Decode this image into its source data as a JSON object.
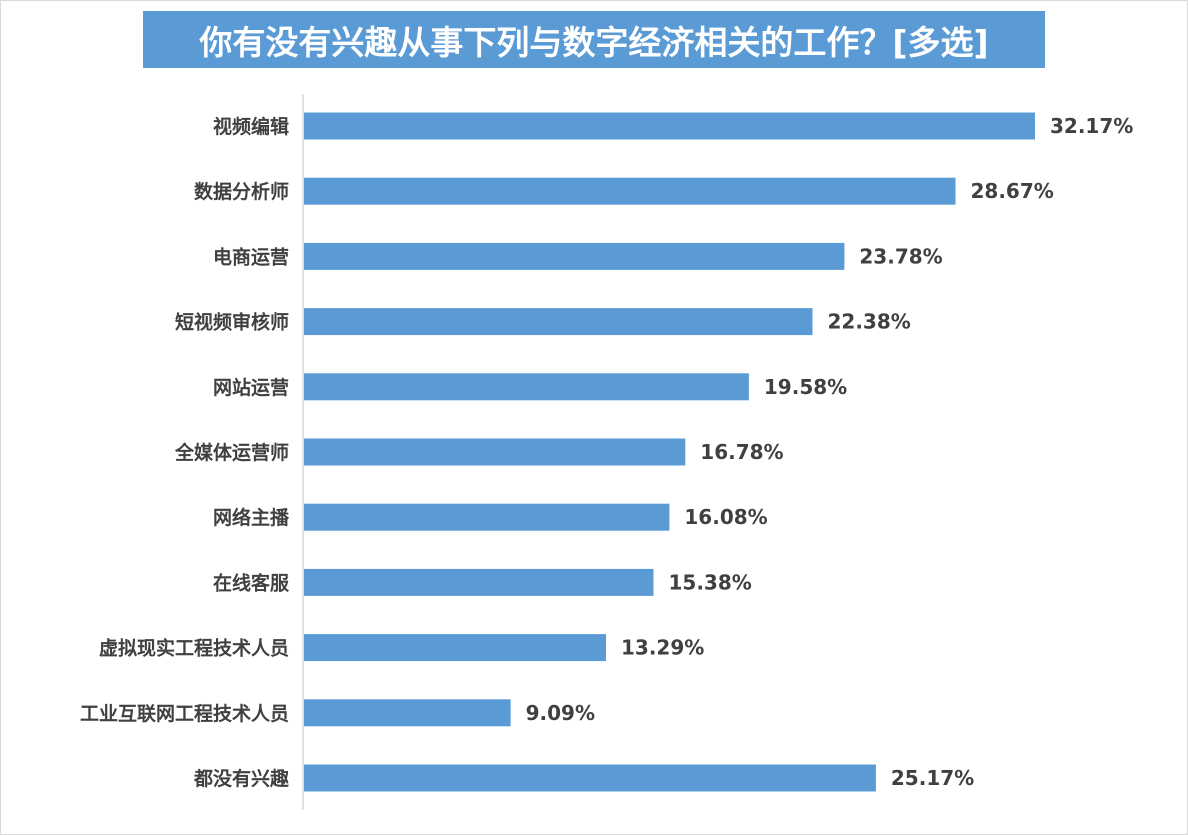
{
  "chart_data": {
    "type": "bar",
    "orientation": "horizontal",
    "title": "你有没有兴趣从事下列与数字经济相关的工作？[多选]",
    "categories": [
      "视频编辑",
      "数据分析师",
      "电商运营",
      "短视频审核师",
      "网站运营",
      "全媒体运营师",
      "网络主播",
      "在线客服",
      "虚拟现实工程技术人员",
      "工业互联网工程技术人员",
      "都没有兴趣"
    ],
    "values": [
      32.17,
      28.67,
      23.78,
      22.38,
      19.58,
      16.78,
      16.08,
      15.38,
      13.29,
      9.09,
      25.17
    ],
    "value_labels": [
      "32.17%",
      "28.67%",
      "23.78%",
      "22.38%",
      "19.58%",
      "16.78%",
      "16.08%",
      "15.38%",
      "13.29%",
      "9.09%",
      "25.17%"
    ],
    "xlim": [
      0,
      35
    ],
    "grid": false,
    "legend": "none",
    "bar_color": "#5b9bd5",
    "title_bg_color": "#5b9bd5",
    "title_text_color": "#ffffff",
    "label_color": "#404040",
    "axis_color": "#bfbfbf"
  }
}
